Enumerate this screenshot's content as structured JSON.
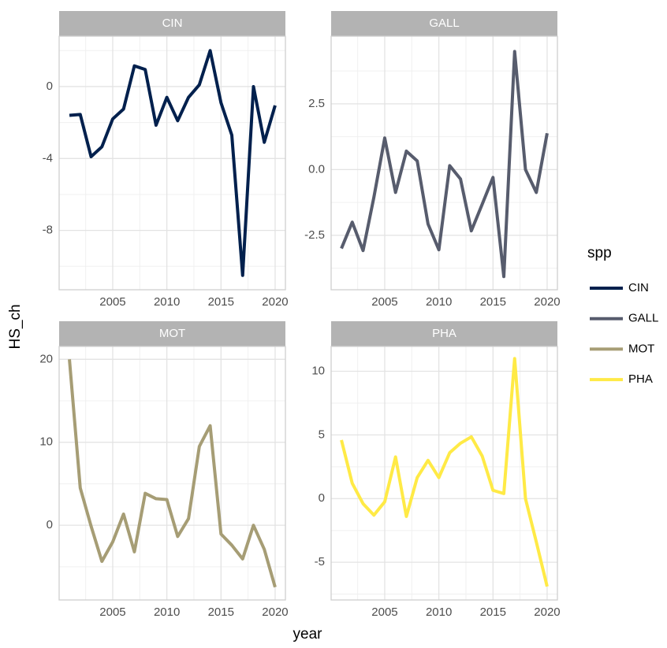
{
  "chart_data": [
    {
      "type": "line",
      "title": "CIN",
      "x": [
        2001,
        2002,
        2003,
        2004,
        2005,
        2006,
        2007,
        2008,
        2009,
        2010,
        2011,
        2012,
        2013,
        2014,
        2015,
        2016,
        2017,
        2018,
        2019,
        2020
      ],
      "series": [
        {
          "name": "CIN",
          "color": "#00204d",
          "values": [
            -1.6,
            -1.55,
            -3.9,
            -3.35,
            -1.8,
            -1.25,
            1.15,
            0.95,
            -2.15,
            -0.6,
            -1.9,
            -0.6,
            0.1,
            2.0,
            -0.9,
            -2.7,
            -10.5,
            0,
            -3.1,
            -1.05
          ]
        }
      ],
      "xlim": [
        2000.05,
        2020.95
      ],
      "xticks": [
        2005,
        2010,
        2015,
        2020
      ],
      "ylim": [
        -11.3,
        2.8
      ],
      "yticks": [
        -8,
        -4,
        0
      ],
      "grid": true
    },
    {
      "type": "line",
      "title": "GALL",
      "x": [
        2001,
        2002,
        2003,
        2004,
        2005,
        2006,
        2007,
        2008,
        2009,
        2010,
        2011,
        2012,
        2013,
        2014,
        2015,
        2016,
        2017,
        2018,
        2019,
        2020
      ],
      "series": [
        {
          "name": "GALL",
          "color": "#575c6d",
          "values": [
            -3.0,
            -2.0,
            -3.08,
            -1.05,
            1.2,
            -0.87,
            0.7,
            0.33,
            -2.07,
            -3.05,
            0.15,
            -0.36,
            -2.33,
            -1.32,
            -0.3,
            -4.07,
            4.49,
            0,
            -0.87,
            1.38
          ]
        }
      ],
      "xlim": [
        2000.05,
        2020.95
      ],
      "xticks": [
        2005,
        2010,
        2015,
        2020
      ],
      "ylim": [
        -4.57,
        5.07
      ],
      "yticks": [
        -2.5,
        {
          "value": 0,
          "label": "0.0"
        },
        2.5
      ],
      "grid": true
    },
    {
      "type": "line",
      "title": "MOT",
      "x": [
        2001,
        2002,
        2003,
        2004,
        2005,
        2006,
        2007,
        2008,
        2009,
        2010,
        2011,
        2012,
        2013,
        2014,
        2015,
        2016,
        2017,
        2018,
        2019,
        2020
      ],
      "series": [
        {
          "name": "MOT",
          "color": "#a69d75",
          "values": [
            20,
            4.5,
            -0.1,
            -4.35,
            -2.0,
            1.35,
            -3.2,
            3.85,
            3.2,
            3.1,
            -1.35,
            0.8,
            9.5,
            12.0,
            -1.05,
            -2.4,
            -4.05,
            0,
            -2.9,
            -7.45
          ]
        }
      ],
      "xlim": [
        2000.05,
        2020.95
      ],
      "xticks": [
        2005,
        2010,
        2015,
        2020
      ],
      "ylim": [
        -9.0,
        21.55
      ],
      "yticks": [
        0,
        10,
        20
      ],
      "grid": true
    },
    {
      "type": "line",
      "title": "PHA",
      "x": [
        2001,
        2002,
        2003,
        2004,
        2005,
        2006,
        2007,
        2008,
        2009,
        2010,
        2011,
        2012,
        2013,
        2014,
        2015,
        2016,
        2017,
        2018,
        2019,
        2020
      ],
      "series": [
        {
          "name": "PHA",
          "color": "#ffea46",
          "values": [
            4.6,
            1.2,
            -0.4,
            -1.3,
            -0.25,
            3.27,
            -1.4,
            1.65,
            3.0,
            1.65,
            3.6,
            4.35,
            4.85,
            3.35,
            0.65,
            0.4,
            11.0,
            0,
            -3.4,
            -6.9
          ]
        }
      ],
      "xlim": [
        2000.05,
        2020.95
      ],
      "xticks": [
        2005,
        2010,
        2015,
        2020
      ],
      "ylim": [
        -7.96,
        11.95
      ],
      "yticks": [
        -5,
        0,
        5,
        10
      ],
      "grid": true
    }
  ],
  "x_label": "year",
  "y_label": "HS_ch",
  "legend_title": "spp"
}
